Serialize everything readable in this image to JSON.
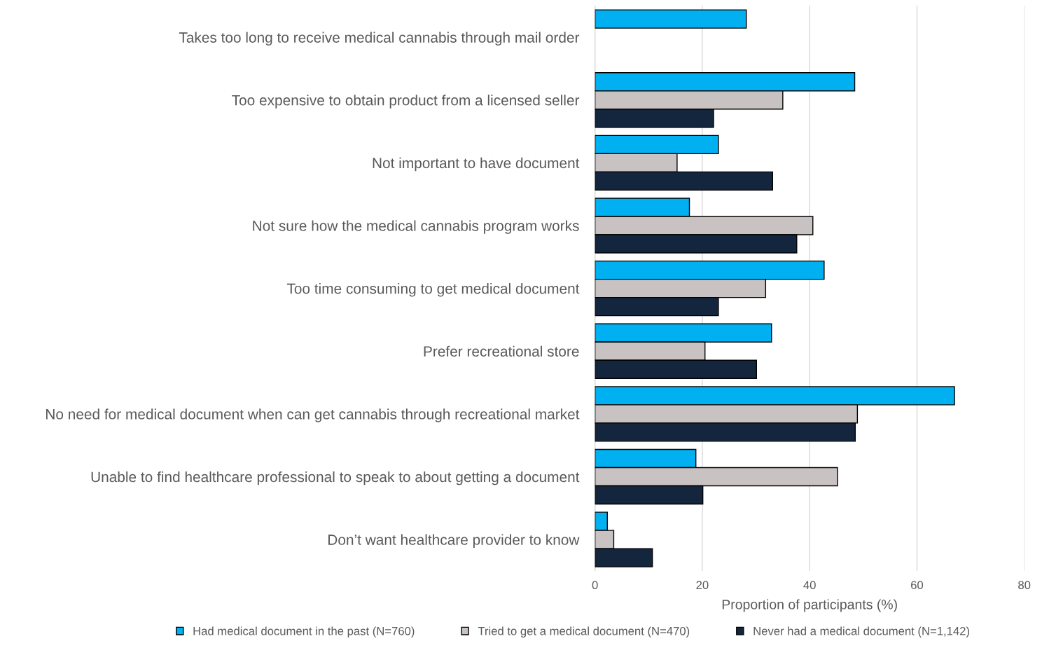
{
  "chart_data": {
    "type": "bar",
    "orientation": "horizontal",
    "xlabel": "Proportion of participants (%)",
    "categories": [
      "Takes too long to receive medical cannabis through mail order",
      "Too expensive to obtain product from a licensed seller",
      "Not important to have document",
      "Not sure how the medical cannabis program works",
      "Too time consuming to get medical document",
      "Prefer recreational store",
      "No need for medical document when can get cannabis through recreational market",
      "Unable to find healthcare professional to speak to about getting a document",
      "Don’t want healthcare provider to know"
    ],
    "series": [
      {
        "name": "Had medical document in the past (N=760)",
        "color": "#00b0f0",
        "values": [
          28.2,
          48.4,
          23.0,
          17.6,
          42.7,
          32.9,
          67.0,
          18.8,
          2.3
        ]
      },
      {
        "name": "Tried to get a medical document (N=470)",
        "color": "#c9c2c2",
        "values": [
          null,
          35.0,
          15.3,
          40.6,
          31.8,
          20.5,
          48.9,
          45.2,
          3.5
        ]
      },
      {
        "name": "Never had a medical document (N=1,142)",
        "color": "#14263d",
        "values": [
          null,
          22.1,
          33.1,
          37.6,
          23.0,
          30.1,
          48.5,
          20.1,
          10.7
        ]
      }
    ],
    "xlim": [
      0,
      80
    ],
    "xticks": [
      0,
      20,
      40,
      60,
      80
    ],
    "grid": "x",
    "legend": "bottom"
  }
}
